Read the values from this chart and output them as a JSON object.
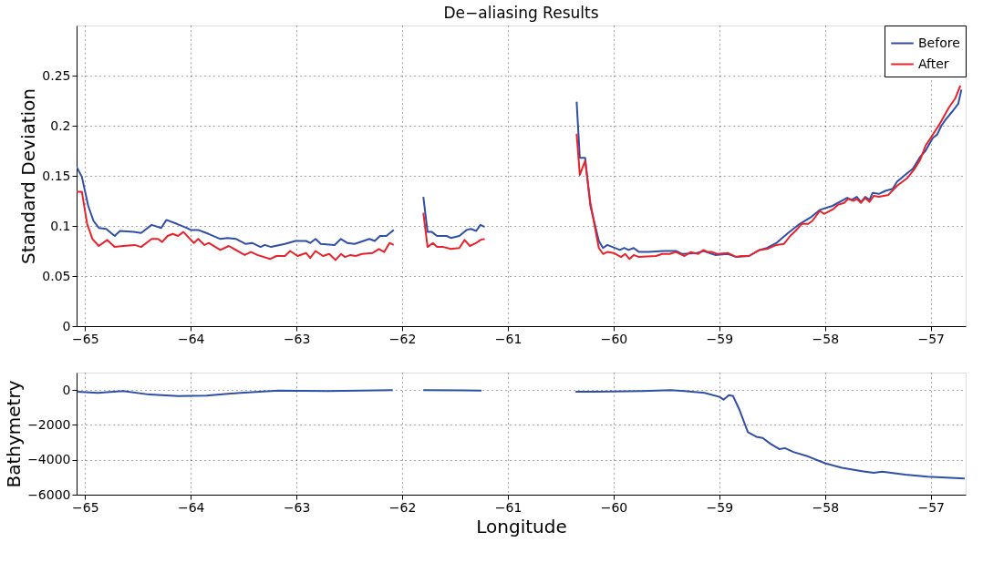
{
  "chart_data": [
    {
      "type": "line",
      "title": "De−aliasing Results",
      "ylabel": "Standard Deviation",
      "xlim": [
        -65.08,
        -56.67
      ],
      "xticks": [
        -65,
        -64,
        -63,
        -62,
        -61,
        -60,
        -59,
        -58,
        -57
      ],
      "ylim": [
        0,
        0.3
      ],
      "yticks": [
        0,
        0.05,
        0.1,
        0.15,
        0.2,
        0.25
      ],
      "grid": true,
      "legend": "top right",
      "series": [
        {
          "name": "Before",
          "color": "#2f4ea8",
          "x": [
            -65.08,
            -65.03,
            -64.97,
            -64.92,
            -64.87,
            -64.8,
            -64.72,
            -64.67,
            -64.54,
            -64.47,
            -64.37,
            -64.28,
            -64.23,
            -64.13,
            -64.04,
            -64.0,
            -63.93,
            -63.83,
            -63.72,
            -63.65,
            -63.57,
            -63.48,
            -63.42,
            -63.34,
            -63.3,
            -63.24,
            -63.11,
            -63.01,
            -62.91,
            -62.87,
            -62.82,
            -62.77,
            -62.64,
            -62.58,
            -62.52,
            -62.45,
            -62.31,
            -62.26,
            -62.21,
            -62.15,
            -62.08,
            -62.0,
            -61.8,
            -61.76,
            -61.72,
            -61.67,
            -61.58,
            -61.54,
            -61.46,
            -61.39,
            -61.35,
            -61.3,
            -61.26,
            -61.22,
            -61.0,
            -60.35,
            -60.32,
            -60.27,
            -60.22,
            -60.14,
            -60.1,
            -60.06,
            -59.94,
            -59.9,
            -59.86,
            -59.81,
            -59.76,
            -59.67,
            -59.53,
            -59.41,
            -59.35,
            -59.21,
            -59.15,
            -59.04,
            -58.92,
            -58.84,
            -58.72,
            -58.62,
            -58.55,
            -58.46,
            -58.35,
            -58.24,
            -58.13,
            -58.05,
            -57.93,
            -57.79,
            -57.75,
            -57.7,
            -57.66,
            -57.62,
            -57.58,
            -57.55,
            -57.49,
            -57.43,
            -57.36,
            -57.32,
            -57.23,
            -57.17,
            -57.1,
            -57.05,
            -56.98,
            -56.94,
            -56.9,
            -56.86,
            -56.79,
            -56.74,
            -56.71
          ],
          "values": [
            0.159,
            0.149,
            0.12,
            0.105,
            0.098,
            0.097,
            0.09,
            0.095,
            0.094,
            0.093,
            0.101,
            0.098,
            0.106,
            0.102,
            0.098,
            0.096,
            0.096,
            0.092,
            0.087,
            0.088,
            0.087,
            0.082,
            0.083,
            0.079,
            0.081,
            0.079,
            0.082,
            0.085,
            0.085,
            0.083,
            0.087,
            0.082,
            0.081,
            0.087,
            0.083,
            0.082,
            0.087,
            0.085,
            0.09,
            0.09,
            0.096,
            null,
            0.129,
            0.094,
            0.094,
            0.09,
            0.09,
            0.088,
            0.09,
            0.096,
            0.097,
            0.095,
            0.101,
            0.099,
            null,
            0.224,
            0.168,
            0.168,
            0.12,
            0.085,
            0.078,
            0.081,
            0.076,
            0.078,
            0.076,
            0.078,
            0.074,
            0.074,
            0.075,
            0.075,
            0.072,
            0.073,
            0.075,
            0.071,
            0.072,
            0.069,
            0.07,
            0.076,
            0.078,
            0.083,
            0.093,
            0.102,
            0.109,
            0.116,
            0.12,
            0.128,
            0.126,
            0.129,
            0.124,
            0.129,
            0.126,
            0.133,
            0.132,
            0.135,
            0.137,
            0.144,
            0.152,
            0.157,
            0.169,
            0.175,
            0.188,
            0.191,
            0.2,
            0.206,
            0.215,
            0.222,
            0.236
          ]
        },
        {
          "name": "After",
          "color": "#e8222a",
          "x": [
            -65.08,
            -65.03,
            -64.98,
            -64.93,
            -64.87,
            -64.79,
            -64.72,
            -64.64,
            -64.53,
            -64.47,
            -64.37,
            -64.31,
            -64.27,
            -64.22,
            -64.17,
            -64.12,
            -64.07,
            -63.97,
            -63.93,
            -63.87,
            -63.83,
            -63.72,
            -63.64,
            -63.49,
            -63.43,
            -63.37,
            -63.25,
            -63.19,
            -63.11,
            -63.06,
            -62.99,
            -62.91,
            -62.87,
            -62.82,
            -62.75,
            -62.69,
            -62.63,
            -62.58,
            -62.54,
            -62.49,
            -62.44,
            -62.38,
            -62.28,
            -62.22,
            -62.17,
            -62.12,
            -62.08,
            -62.0,
            -61.8,
            -61.76,
            -61.71,
            -61.67,
            -61.61,
            -61.54,
            -61.46,
            -61.41,
            -61.36,
            -61.3,
            -61.26,
            -61.22,
            -61.0,
            -60.35,
            -60.32,
            -60.27,
            -60.22,
            -60.14,
            -60.1,
            -60.06,
            -60.0,
            -59.93,
            -59.89,
            -59.85,
            -59.81,
            -59.76,
            -59.6,
            -59.54,
            -59.47,
            -59.41,
            -59.33,
            -59.27,
            -59.2,
            -59.15,
            -59.11,
            -59.07,
            -59.02,
            -58.92,
            -58.84,
            -58.79,
            -58.72,
            -58.62,
            -58.55,
            -58.46,
            -58.39,
            -58.33,
            -58.28,
            -58.22,
            -58.16,
            -58.12,
            -58.05,
            -58.01,
            -57.92,
            -57.88,
            -57.82,
            -57.78,
            -57.73,
            -57.7,
            -57.66,
            -57.62,
            -57.58,
            -57.54,
            -57.49,
            -57.4,
            -57.32,
            -57.22,
            -57.16,
            -57.1,
            -57.05,
            -57.0,
            -56.92,
            -56.83,
            -56.77,
            -56.72
          ],
          "values": [
            0.134,
            0.134,
            0.102,
            0.087,
            0.08,
            0.086,
            0.079,
            0.08,
            0.081,
            0.079,
            0.087,
            0.087,
            0.084,
            0.09,
            0.092,
            0.09,
            0.094,
            0.083,
            0.087,
            0.081,
            0.083,
            0.076,
            0.08,
            0.071,
            0.074,
            0.071,
            0.067,
            0.07,
            0.07,
            0.075,
            0.07,
            0.073,
            0.068,
            0.075,
            0.07,
            0.072,
            0.066,
            0.072,
            0.069,
            0.071,
            0.07,
            0.072,
            0.073,
            0.077,
            0.074,
            0.083,
            0.081,
            null,
            0.113,
            0.079,
            0.083,
            0.079,
            0.079,
            0.077,
            0.078,
            0.086,
            0.08,
            0.083,
            0.086,
            0.087,
            null,
            0.192,
            0.151,
            0.165,
            0.123,
            0.078,
            0.072,
            0.074,
            0.073,
            0.069,
            0.072,
            0.067,
            0.071,
            0.069,
            0.07,
            0.072,
            0.072,
            0.074,
            0.07,
            0.074,
            0.072,
            0.076,
            0.074,
            0.074,
            0.072,
            0.073,
            0.069,
            0.07,
            0.07,
            0.076,
            0.077,
            0.081,
            0.082,
            0.09,
            0.095,
            0.102,
            0.102,
            0.105,
            0.115,
            0.112,
            0.117,
            0.121,
            0.123,
            0.127,
            0.125,
            0.127,
            0.123,
            0.128,
            0.124,
            0.13,
            0.129,
            0.131,
            0.14,
            0.148,
            0.156,
            0.166,
            0.18,
            0.188,
            0.201,
            0.218,
            0.227,
            0.24
          ]
        }
      ]
    },
    {
      "type": "line",
      "xlabel": "Longitude",
      "ylabel": "Bathymetry",
      "xlim": [
        -65.08,
        -56.67
      ],
      "xticks": [
        -65,
        -64,
        -63,
        -62,
        -61,
        -60,
        -59,
        -58,
        -57
      ],
      "ylim": [
        -6000,
        1000
      ],
      "yticks": [
        -6000,
        -4000,
        -2000,
        0
      ],
      "grid": true,
      "series": [
        {
          "color": "#2f4ea8",
          "x": [
            -65.07,
            -64.88,
            -64.64,
            -64.39,
            -64.12,
            -63.85,
            -63.53,
            -63.17,
            -62.71,
            -62.09,
            -62.0,
            -61.8,
            -61.25,
            -61.0,
            -60.36,
            -60.17,
            -59.73,
            -59.46,
            -59.33,
            -59.14,
            -59.0,
            -58.96,
            -58.91,
            -58.87,
            -58.81,
            -58.73,
            -58.65,
            -58.59,
            -58.52,
            -58.43,
            -58.38,
            -58.3,
            -58.16,
            -58.0,
            -57.84,
            -57.65,
            -57.54,
            -57.46,
            -57.24,
            -57.03,
            -56.81,
            -56.68
          ],
          "values": [
            -100,
            -160,
            -60,
            -260,
            -350,
            -320,
            -160,
            -30,
            -60,
            0,
            null,
            0,
            -30,
            null,
            -100,
            -100,
            -60,
            0,
            -60,
            -160,
            -390,
            -550,
            -290,
            -350,
            -1130,
            -2420,
            -2680,
            -2750,
            -3070,
            -3390,
            -3330,
            -3550,
            -3810,
            -4200,
            -4460,
            -4650,
            -4750,
            -4680,
            -4850,
            -4970,
            -5040,
            -5070
          ]
        }
      ]
    }
  ]
}
